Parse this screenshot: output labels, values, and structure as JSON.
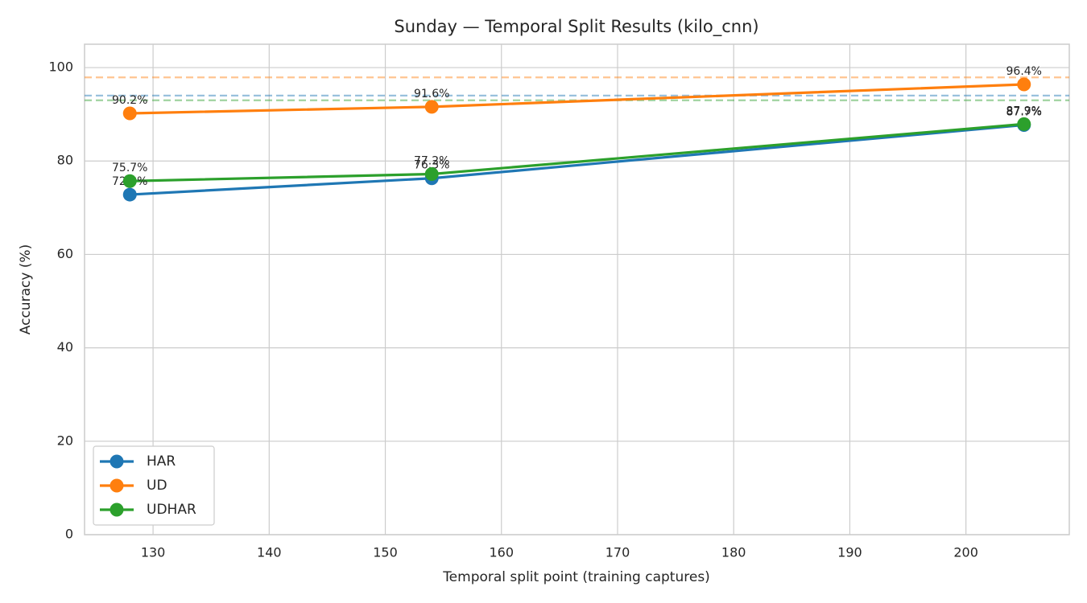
{
  "chart_data": {
    "type": "line",
    "title": "Sunday — Temporal Split Results (kilo_cnn)",
    "x_label": "Temporal split point (training captures)",
    "y_label": "Accuracy (%)",
    "x": [
      128,
      154,
      205
    ],
    "series": [
      {
        "name": "HAR",
        "color": "#1f77b4",
        "values": [
          72.8,
          76.3,
          87.7
        ],
        "value_labels": [
          "72.8%",
          "76.3%",
          "87.7%"
        ],
        "baseline": 94.0
      },
      {
        "name": "UD",
        "color": "#ff7f0e",
        "values": [
          90.2,
          91.6,
          96.4
        ],
        "value_labels": [
          "90.2%",
          "91.6%",
          "96.4%"
        ],
        "baseline": 97.9
      },
      {
        "name": "UDHAR",
        "color": "#2ca02c",
        "values": [
          75.7,
          77.2,
          87.9
        ],
        "value_labels": [
          "75.7%",
          "77.2%",
          "87.9%"
        ],
        "baseline": 93.0
      }
    ],
    "xlim": [
      124.1,
      208.9
    ],
    "xticks": [
      130,
      140,
      150,
      160,
      170,
      180,
      190,
      200
    ],
    "ylim": [
      0,
      105
    ],
    "yticks": [
      0,
      20,
      40,
      60,
      80,
      100
    ],
    "grid": true,
    "legend": "lower left"
  }
}
